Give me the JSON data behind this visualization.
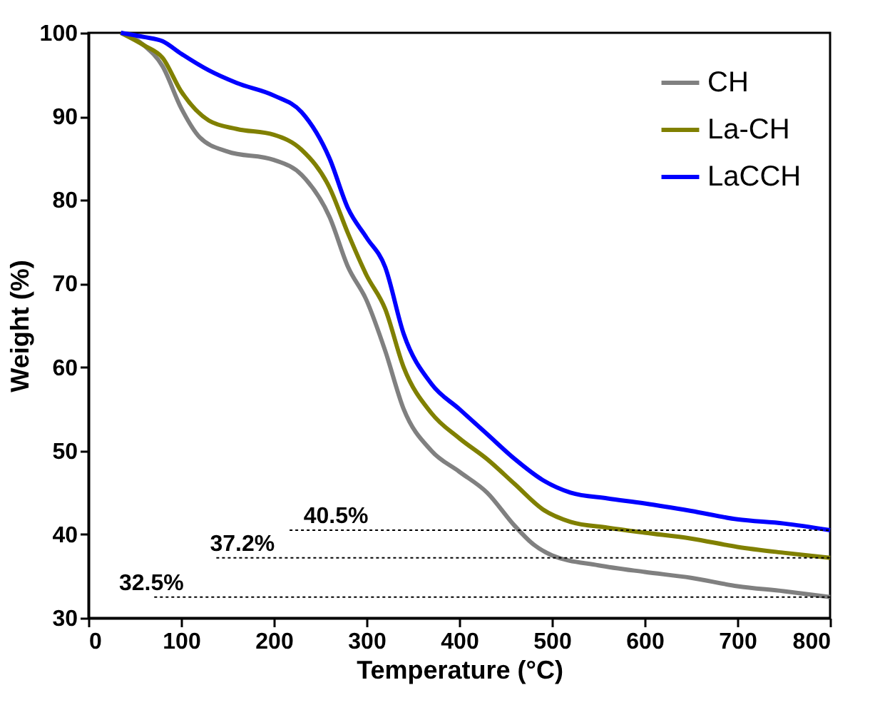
{
  "chart_data": {
    "type": "line",
    "xlabel": "Temperature (°C)",
    "ylabel": "Weight (%)",
    "xlim": [
      0,
      800
    ],
    "xticks": [
      0,
      100,
      200,
      300,
      400,
      500,
      600,
      700,
      800
    ],
    "ylim": [
      30,
      100
    ],
    "yticks": [
      30,
      40,
      50,
      60,
      70,
      80,
      90,
      100
    ],
    "grid": false,
    "legend": "top right",
    "marker": "none",
    "line_style": "solid",
    "series": [
      {
        "name": "CH",
        "color": "#808080",
        "x": [
          35,
          60,
          80,
          100,
          120,
          150,
          200,
          230,
          260,
          280,
          300,
          320,
          340,
          370,
          400,
          430,
          460,
          480,
          500,
          550,
          600,
          650,
          700,
          750,
          800
        ],
        "values": [
          100,
          98.5,
          96,
          91,
          87.5,
          85.8,
          84.8,
          83,
          78,
          72,
          68,
          62,
          55,
          50,
          47.5,
          45,
          41,
          38.8,
          37.5,
          36.3,
          35.5,
          34.8,
          33.8,
          33.2,
          32.5
        ]
      },
      {
        "name": "La-CH",
        "color": "#808000",
        "x": [
          35,
          60,
          80,
          100,
          130,
          160,
          200,
          230,
          260,
          280,
          300,
          320,
          340,
          370,
          400,
          430,
          460,
          490,
          520,
          560,
          600,
          650,
          700,
          750,
          800
        ],
        "values": [
          100,
          98.5,
          97,
          93,
          89.5,
          88.5,
          87.8,
          86,
          81.5,
          76,
          71,
          67,
          60,
          54.5,
          51.5,
          49,
          46,
          43,
          41.5,
          40.8,
          40.2,
          39.5,
          38.5,
          37.8,
          37.2
        ]
      },
      {
        "name": "LaCCH",
        "color": "#0000ff",
        "x": [
          35,
          60,
          80,
          100,
          130,
          160,
          200,
          230,
          260,
          280,
          300,
          320,
          340,
          370,
          400,
          430,
          460,
          490,
          520,
          560,
          600,
          650,
          700,
          750,
          800
        ],
        "values": [
          100,
          99.5,
          99,
          97.5,
          95.5,
          94,
          92.5,
          90.5,
          85,
          79,
          75.5,
          72,
          64,
          58,
          55,
          52,
          49,
          46.5,
          45,
          44.3,
          43.7,
          42.8,
          41.8,
          41.3,
          40.5
        ]
      },
      {
        "color": "#000000",
        "line_style": "dotted",
        "x": [
          217,
          800
        ],
        "values": [
          40.5,
          40.5
        ]
      },
      {
        "color": "#000000",
        "line_style": "dotted",
        "x": [
          138,
          800
        ],
        "values": [
          37.2,
          37.2
        ]
      },
      {
        "color": "#000000",
        "line_style": "dotted",
        "x": [
          71,
          800
        ],
        "values": [
          32.5,
          32.5
        ]
      }
    ],
    "annotations": [
      {
        "text": "40.5%",
        "x": 267,
        "y": 40.5
      },
      {
        "text": "37.2%",
        "x": 166,
        "y": 37.2
      },
      {
        "text": "32.5%",
        "x": 68,
        "y": 32.5
      }
    ]
  }
}
